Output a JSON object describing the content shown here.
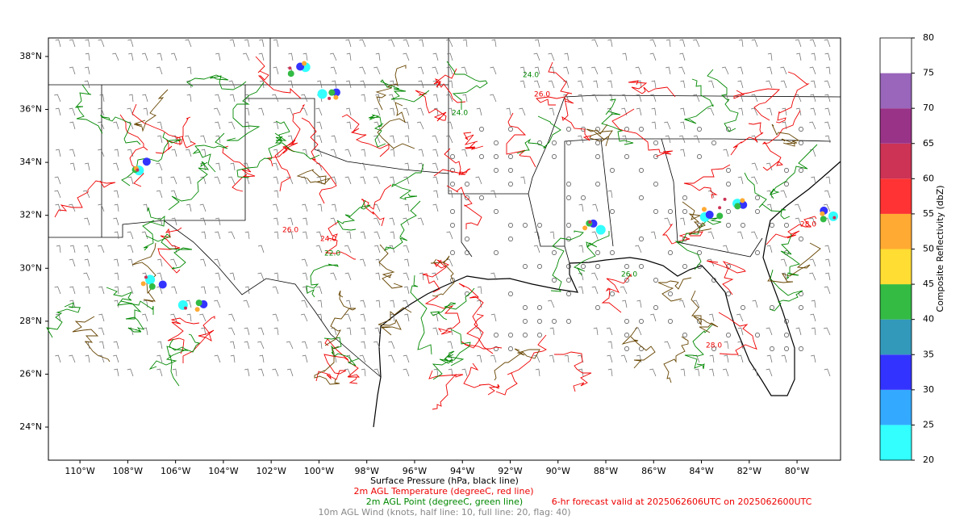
{
  "map": {
    "lon_range": [
      -111.32,
      -78.18
    ],
    "lat_range": [
      22.75,
      38.7
    ],
    "lon_ticks": [
      {
        "value": -110,
        "label": "110°W"
      },
      {
        "value": -108,
        "label": "108°W"
      },
      {
        "value": -106,
        "label": "106°W"
      },
      {
        "value": -104,
        "label": "104°W"
      },
      {
        "value": -102,
        "label": "102°W"
      },
      {
        "value": -100,
        "label": "100°W"
      },
      {
        "value": -98,
        "label": "98°W"
      },
      {
        "value": -96,
        "label": "96°W"
      },
      {
        "value": -94,
        "label": "94°W"
      },
      {
        "value": -92,
        "label": "92°W"
      },
      {
        "value": -90,
        "label": "90°W"
      },
      {
        "value": -88,
        "label": "88°W"
      },
      {
        "value": -86,
        "label": "86°W"
      },
      {
        "value": -84,
        "label": "84°W"
      },
      {
        "value": -82,
        "label": "82°W"
      },
      {
        "value": -80,
        "label": "80°W"
      }
    ],
    "lat_ticks": [
      {
        "value": 24,
        "label": "24°N"
      },
      {
        "value": 26,
        "label": "26°N"
      },
      {
        "value": 28,
        "label": "28°N"
      },
      {
        "value": 30,
        "label": "30°N"
      },
      {
        "value": 32,
        "label": "32°N"
      },
      {
        "value": 34,
        "label": "34°N"
      },
      {
        "value": 36,
        "label": "36°N"
      },
      {
        "value": 38,
        "label": "38°N"
      }
    ],
    "contour_labels": [
      "24.0",
      "26.0",
      "28.0",
      "22.0",
      "24.0",
      "26.0",
      "28.0",
      "26.0",
      "24.0"
    ],
    "colorbar": {
      "label": "Composite Reflectivity (dbZ)",
      "levels": [
        20,
        25,
        30,
        35,
        40,
        45,
        50,
        55,
        60,
        65,
        70,
        75,
        80
      ],
      "colors": [
        "#33ffff",
        "#33aaff",
        "#3333ff",
        "#3399bb",
        "#33bb44",
        "#ffdd33",
        "#ffaa33",
        "#ff3333",
        "#cc3355",
        "#993388",
        "#9966bb",
        "#ffffff"
      ]
    },
    "captions": {
      "pressure": "Surface Pressure (hPa, black line)",
      "temperature": "2m AGL Temperature (degreeC, red line)",
      "dewpoint": "2m AGL Point (degreeC, green line)",
      "wind": "10m AGL Wind (knots, half line: 10, full line: 20, flag: 40)",
      "valid": "6-hr forecast valid at 2025062606UTC on 2025062600UTC"
    }
  }
}
